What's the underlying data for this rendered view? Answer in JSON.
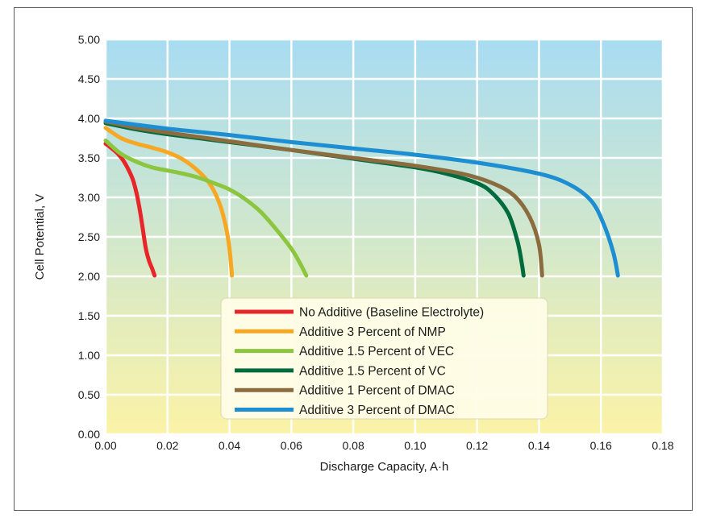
{
  "chart_data": {
    "type": "line",
    "title": "",
    "xlabel": "Discharge Capacity, A·h",
    "ylabel": "Cell Potential, V",
    "xlim": [
      0,
      0.18
    ],
    "ylim": [
      0,
      5
    ],
    "x_ticks": [
      "0.00",
      "0.02",
      "0.04",
      "0.06",
      "0.08",
      "0.10",
      "0.12",
      "0.14",
      "0.16",
      "0.18"
    ],
    "y_ticks": [
      "0.00",
      "0.50",
      "1.00",
      "1.50",
      "2.00",
      "2.50",
      "3.00",
      "3.50",
      "4.00",
      "4.50",
      "5.00"
    ],
    "grid": true,
    "legend_position": "lower-center",
    "background_gradient": [
      "#a8dcf2",
      "#fbf3a6"
    ],
    "series": [
      {
        "name": "No Additive (Baseline Electrolyte)",
        "color": "#e8262a",
        "points": [
          [
            0,
            3.68
          ],
          [
            0.002,
            3.62
          ],
          [
            0.004,
            3.55
          ],
          [
            0.006,
            3.45
          ],
          [
            0.008,
            3.3
          ],
          [
            0.009,
            3.2
          ],
          [
            0.01,
            3.05
          ],
          [
            0.011,
            2.85
          ],
          [
            0.012,
            2.6
          ],
          [
            0.013,
            2.35
          ],
          [
            0.014,
            2.2
          ],
          [
            0.015,
            2.1
          ],
          [
            0.0158,
            2.01
          ]
        ]
      },
      {
        "name": "Additive 3 Percent of NMP",
        "color": "#f7a823",
        "points": [
          [
            0,
            3.88
          ],
          [
            0.005,
            3.75
          ],
          [
            0.01,
            3.68
          ],
          [
            0.015,
            3.63
          ],
          [
            0.02,
            3.57
          ],
          [
            0.025,
            3.48
          ],
          [
            0.03,
            3.33
          ],
          [
            0.034,
            3.15
          ],
          [
            0.037,
            2.9
          ],
          [
            0.039,
            2.6
          ],
          [
            0.04,
            2.35
          ],
          [
            0.0405,
            2.15
          ],
          [
            0.0408,
            2.01
          ]
        ]
      },
      {
        "name": "Additive 1.5 Percent of VEC",
        "color": "#8cc63f",
        "points": [
          [
            0,
            3.72
          ],
          [
            0.005,
            3.55
          ],
          [
            0.01,
            3.45
          ],
          [
            0.015,
            3.38
          ],
          [
            0.02,
            3.34
          ],
          [
            0.025,
            3.3
          ],
          [
            0.03,
            3.25
          ],
          [
            0.035,
            3.18
          ],
          [
            0.04,
            3.1
          ],
          [
            0.045,
            2.98
          ],
          [
            0.05,
            2.82
          ],
          [
            0.055,
            2.6
          ],
          [
            0.06,
            2.35
          ],
          [
            0.063,
            2.15
          ],
          [
            0.0648,
            2.01
          ]
        ]
      },
      {
        "name": "Additive 1.5 Percent of VC",
        "color": "#006b3c",
        "points": [
          [
            0,
            3.94
          ],
          [
            0.01,
            3.86
          ],
          [
            0.02,
            3.8
          ],
          [
            0.04,
            3.7
          ],
          [
            0.06,
            3.6
          ],
          [
            0.08,
            3.49
          ],
          [
            0.1,
            3.38
          ],
          [
            0.11,
            3.3
          ],
          [
            0.12,
            3.18
          ],
          [
            0.125,
            3.05
          ],
          [
            0.13,
            2.8
          ],
          [
            0.133,
            2.45
          ],
          [
            0.1345,
            2.15
          ],
          [
            0.135,
            2.01
          ]
        ]
      },
      {
        "name": "Additive 1 Percent of DMAC",
        "color": "#8b6c3e",
        "points": [
          [
            0,
            3.96
          ],
          [
            0.01,
            3.88
          ],
          [
            0.02,
            3.82
          ],
          [
            0.04,
            3.71
          ],
          [
            0.06,
            3.6
          ],
          [
            0.08,
            3.5
          ],
          [
            0.1,
            3.4
          ],
          [
            0.115,
            3.3
          ],
          [
            0.125,
            3.18
          ],
          [
            0.132,
            3.02
          ],
          [
            0.137,
            2.75
          ],
          [
            0.14,
            2.4
          ],
          [
            0.141,
            2.01
          ]
        ]
      },
      {
        "name": "Additive 3 Percent of DMAC",
        "color": "#1e8ed2",
        "points": [
          [
            0,
            3.97
          ],
          [
            0.02,
            3.87
          ],
          [
            0.04,
            3.79
          ],
          [
            0.06,
            3.7
          ],
          [
            0.08,
            3.62
          ],
          [
            0.1,
            3.54
          ],
          [
            0.12,
            3.44
          ],
          [
            0.14,
            3.3
          ],
          [
            0.15,
            3.16
          ],
          [
            0.157,
            2.95
          ],
          [
            0.161,
            2.65
          ],
          [
            0.164,
            2.3
          ],
          [
            0.1655,
            2.01
          ]
        ]
      }
    ]
  }
}
